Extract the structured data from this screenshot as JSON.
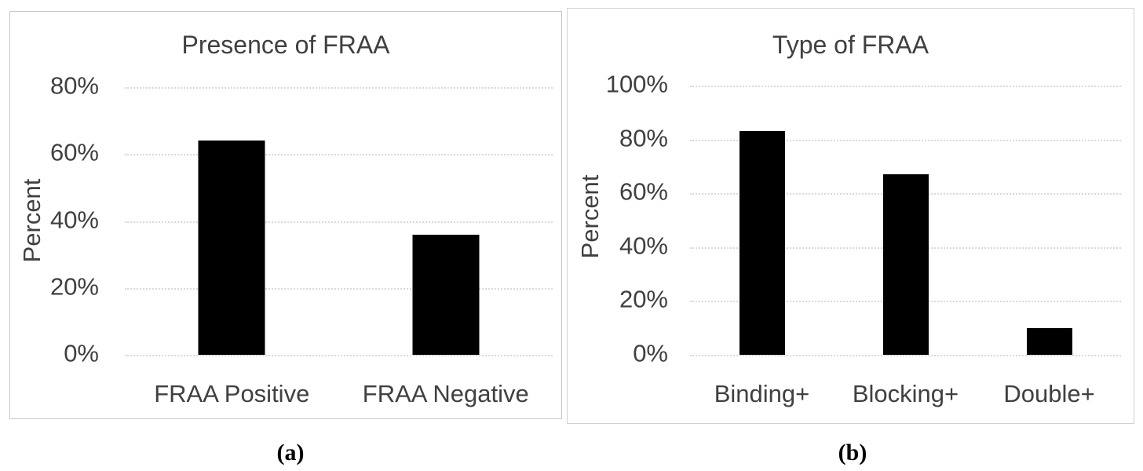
{
  "figure": {
    "captions": {
      "a": "(a)",
      "b": "(b)"
    }
  },
  "colors": {
    "bar": "#000000",
    "text": "#404040",
    "gridline": "#d9d9d9",
    "panel_border": "#c6c6c6",
    "background": "#ffffff"
  },
  "chart_data": [
    {
      "id": "a",
      "type": "bar",
      "title": "Presence of FRAA",
      "ylabel": "Percent",
      "xlabel": "",
      "categories": [
        "FRAA Positive",
        "FRAA Negative"
      ],
      "values": [
        64,
        36
      ],
      "value_unit": "percent",
      "ylim": [
        0,
        80
      ],
      "ytick_step": 20,
      "yticks": [
        "0%",
        "20%",
        "40%",
        "60%",
        "80%"
      ],
      "grid": "horizontal-dotted",
      "legend": "none",
      "bar_color": "#000000",
      "caption": "(a)"
    },
    {
      "id": "b",
      "type": "bar",
      "title": "Type of FRAA",
      "ylabel": "Percent",
      "xlabel": "",
      "categories": [
        "Binding+",
        "Blocking+",
        "Double+"
      ],
      "values": [
        83,
        67,
        10
      ],
      "value_unit": "percent",
      "ylim": [
        0,
        100
      ],
      "ytick_step": 20,
      "yticks": [
        "0%",
        "20%",
        "40%",
        "60%",
        "80%",
        "100%"
      ],
      "grid": "horizontal-dotted",
      "legend": "none",
      "bar_color": "#000000",
      "caption": "(b)"
    }
  ]
}
